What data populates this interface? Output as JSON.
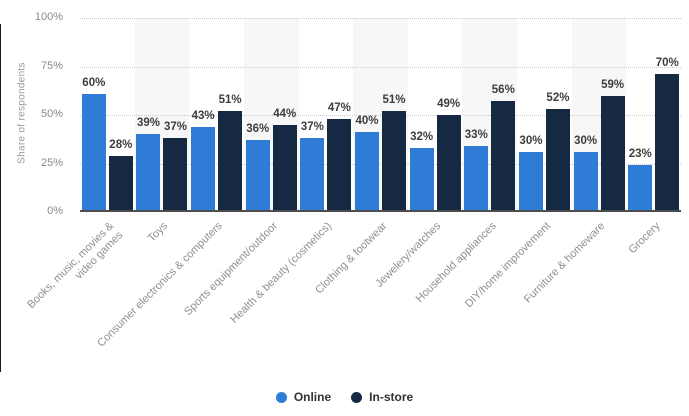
{
  "chart_data": {
    "type": "bar",
    "title": "",
    "xlabel": "",
    "ylabel": "Share of respondents",
    "ylim": [
      0,
      100
    ],
    "yticks": [
      "0%",
      "25%",
      "50%",
      "75%",
      "100%"
    ],
    "grid": "dotted-horizontal",
    "legend_position": "bottom",
    "value_suffix": "%",
    "categories": [
      "Books, music, movies &\nvideo games",
      "Toys",
      "Consumer electronics & computers",
      "Sports equipment/outdoor",
      "Health & beauty (cosmetics)",
      "Clothing & footwear",
      "Jewelery/watches",
      "Household appliances",
      "DIY/home improvement",
      "Furniture & homeware",
      "Grocery"
    ],
    "series": [
      {
        "name": "Online",
        "color": "#2e7cd6",
        "values": [
          60,
          39,
          43,
          36,
          37,
          40,
          32,
          33,
          30,
          30,
          23
        ]
      },
      {
        "name": "In-store",
        "color": "#152a42",
        "values": [
          28,
          37,
          51,
          44,
          47,
          51,
          49,
          56,
          52,
          59,
          70
        ]
      }
    ],
    "colors": {
      "band": "#f7f7f7",
      "gridline": "#c9c9c9",
      "axis_line": "#4d4d4d",
      "tick_label": "#8a8a8a",
      "category_label": "#8f8f8f",
      "value_label": "#3d3d3d"
    }
  }
}
